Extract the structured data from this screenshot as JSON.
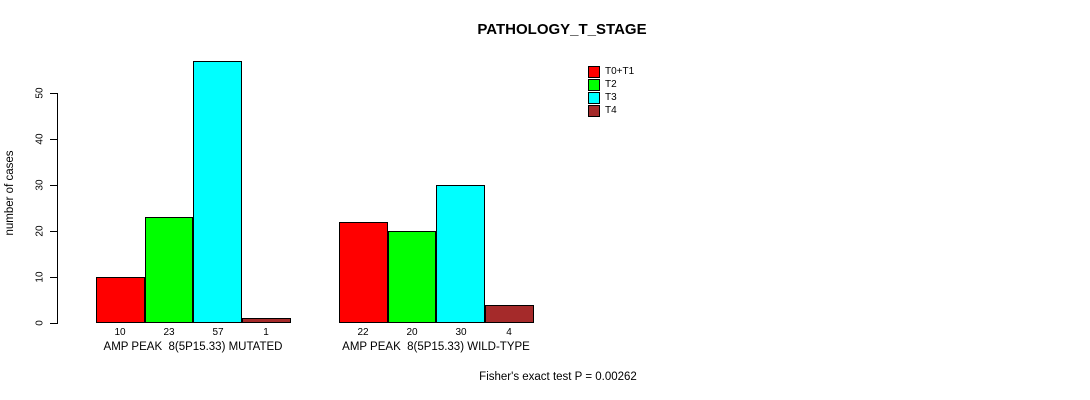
{
  "chart_data": {
    "type": "bar",
    "title": "PATHOLOGY_T_STAGE",
    "ylabel": "number of cases",
    "xlabel": "",
    "categories": [
      "AMP PEAK  8(5P15.33) MUTATED",
      "AMP PEAK  8(5P15.33) WILD-TYPE"
    ],
    "series": [
      {
        "name": "T0+T1",
        "color": "#ff0000",
        "values": [
          10,
          22
        ]
      },
      {
        "name": "T2",
        "color": "#00ff00",
        "values": [
          23,
          20
        ]
      },
      {
        "name": "T3",
        "color": "#00ffff",
        "values": [
          57,
          30
        ]
      },
      {
        "name": "T4",
        "color": "#a52a2a",
        "values": [
          1,
          4
        ]
      }
    ],
    "bar_value_labels": [
      [
        "10",
        "23",
        "57",
        "1"
      ],
      [
        "22",
        "20",
        "30",
        "4"
      ]
    ],
    "yticks": [
      0,
      10,
      20,
      30,
      40,
      50
    ],
    "ylim": [
      0,
      57
    ],
    "grid": false,
    "legend_position": "top-right",
    "annotation": "Fisher's exact test P = 0.00262"
  },
  "colors": {
    "axis": "#000000",
    "text": "#000000",
    "background": "#ffffff"
  }
}
